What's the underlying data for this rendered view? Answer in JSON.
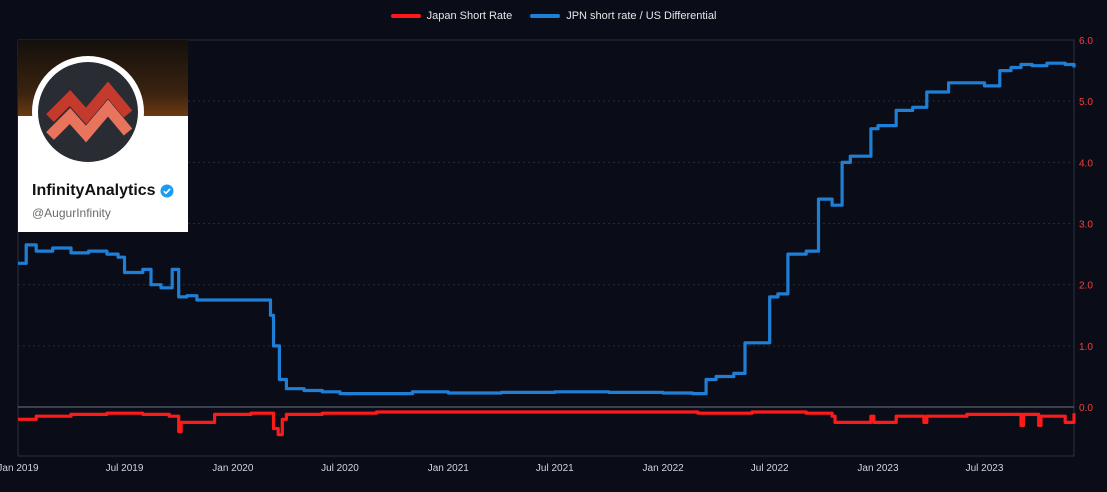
{
  "legend": {
    "items": [
      {
        "label": "Japan Short Rate",
        "color": "#ff1a1a"
      },
      {
        "label": "JPN short rate / US Differential",
        "color": "#1f7fd6"
      }
    ]
  },
  "logo": {
    "name": "InfinityAnalytics",
    "handle": "@AugurInfinity"
  },
  "chart_data": {
    "type": "line",
    "x_ticks": [
      "Jan 2019",
      "Jul 2019",
      "Jan 2020",
      "Jul 2020",
      "Jan 2021",
      "Jul 2021",
      "Jan 2022",
      "Jul 2022",
      "Jan 2023",
      "Jul 2023"
    ],
    "x_range": [
      "2019-01-01",
      "2023-11-30"
    ],
    "y_ticks": [
      "0.0",
      "1.0",
      "2.0",
      "3.0",
      "4.0",
      "5.0",
      "6.0"
    ],
    "ylim": [
      -0.8,
      6.0
    ],
    "y_axis_side": "right",
    "grid": "horizontal dashed",
    "legend_placement": "top-center",
    "series": [
      {
        "name": "JPN short rate / US Differential",
        "color": "#1f7fd6",
        "x": [
          "2019-01-01",
          "2019-01-15",
          "2019-02-01",
          "2019-03-01",
          "2019-04-01",
          "2019-05-01",
          "2019-06-01",
          "2019-06-20",
          "2019-07-01",
          "2019-08-01",
          "2019-08-15",
          "2019-09-01",
          "2019-09-20",
          "2019-10-01",
          "2019-10-15",
          "2019-11-01",
          "2019-12-01",
          "2020-01-01",
          "2020-02-01",
          "2020-02-28",
          "2020-03-05",
          "2020-03-10",
          "2020-03-20",
          "2020-04-01",
          "2020-05-01",
          "2020-06-01",
          "2020-07-01",
          "2020-09-01",
          "2020-11-01",
          "2021-01-01",
          "2021-04-01",
          "2021-07-01",
          "2021-10-01",
          "2022-01-01",
          "2022-02-20",
          "2022-03-15",
          "2022-04-01",
          "2022-05-01",
          "2022-05-20",
          "2022-06-15",
          "2022-07-01",
          "2022-07-15",
          "2022-08-01",
          "2022-09-01",
          "2022-09-22",
          "2022-10-15",
          "2022-11-01",
          "2022-11-15",
          "2022-12-01",
          "2022-12-20",
          "2023-01-01",
          "2023-02-01",
          "2023-03-01",
          "2023-03-25",
          "2023-04-01",
          "2023-05-01",
          "2023-05-20",
          "2023-06-15",
          "2023-07-01",
          "2023-07-27",
          "2023-08-15",
          "2023-09-01",
          "2023-09-20",
          "2023-10-15",
          "2023-11-15",
          "2023-11-30"
        ],
        "y": [
          2.35,
          2.65,
          2.55,
          2.6,
          2.52,
          2.55,
          2.5,
          2.45,
          2.2,
          2.25,
          2.0,
          1.95,
          2.25,
          1.8,
          1.82,
          1.75,
          1.75,
          1.75,
          1.75,
          1.75,
          1.5,
          1.0,
          0.45,
          0.3,
          0.27,
          0.25,
          0.22,
          0.22,
          0.25,
          0.23,
          0.24,
          0.25,
          0.24,
          0.23,
          0.22,
          0.45,
          0.5,
          0.55,
          1.05,
          1.05,
          1.8,
          1.85,
          2.5,
          2.55,
          3.4,
          3.3,
          4.0,
          4.1,
          4.1,
          4.55,
          4.6,
          4.85,
          4.9,
          5.15,
          5.15,
          5.3,
          5.3,
          5.3,
          5.25,
          5.5,
          5.55,
          5.6,
          5.58,
          5.62,
          5.6,
          5.55
        ]
      },
      {
        "name": "Japan Short Rate",
        "color": "#ff1a1a",
        "x": [
          "2019-01-01",
          "2019-02-01",
          "2019-04-01",
          "2019-06-01",
          "2019-08-01",
          "2019-09-15",
          "2019-10-01",
          "2019-10-05",
          "2019-12-01",
          "2020-02-01",
          "2020-03-10",
          "2020-03-18",
          "2020-03-25",
          "2020-04-01",
          "2020-06-01",
          "2020-09-01",
          "2021-01-01",
          "2021-06-01",
          "2022-01-01",
          "2022-03-01",
          "2022-06-01",
          "2022-09-01",
          "2022-10-15",
          "2022-10-20",
          "2022-12-20",
          "2022-12-25",
          "2023-02-01",
          "2023-03-01",
          "2023-03-20",
          "2023-03-25",
          "2023-06-01",
          "2023-08-01",
          "2023-09-01",
          "2023-09-05",
          "2023-10-01",
          "2023-10-05",
          "2023-11-15",
          "2023-11-30"
        ],
        "y": [
          -0.2,
          -0.15,
          -0.12,
          -0.1,
          -0.12,
          -0.15,
          -0.4,
          -0.25,
          -0.12,
          -0.1,
          -0.35,
          -0.45,
          -0.2,
          -0.12,
          -0.1,
          -0.08,
          -0.08,
          -0.08,
          -0.08,
          -0.1,
          -0.08,
          -0.1,
          -0.15,
          -0.25,
          -0.15,
          -0.25,
          -0.15,
          -0.15,
          -0.25,
          -0.15,
          -0.12,
          -0.12,
          -0.3,
          -0.12,
          -0.3,
          -0.15,
          -0.25,
          -0.1
        ]
      }
    ]
  }
}
